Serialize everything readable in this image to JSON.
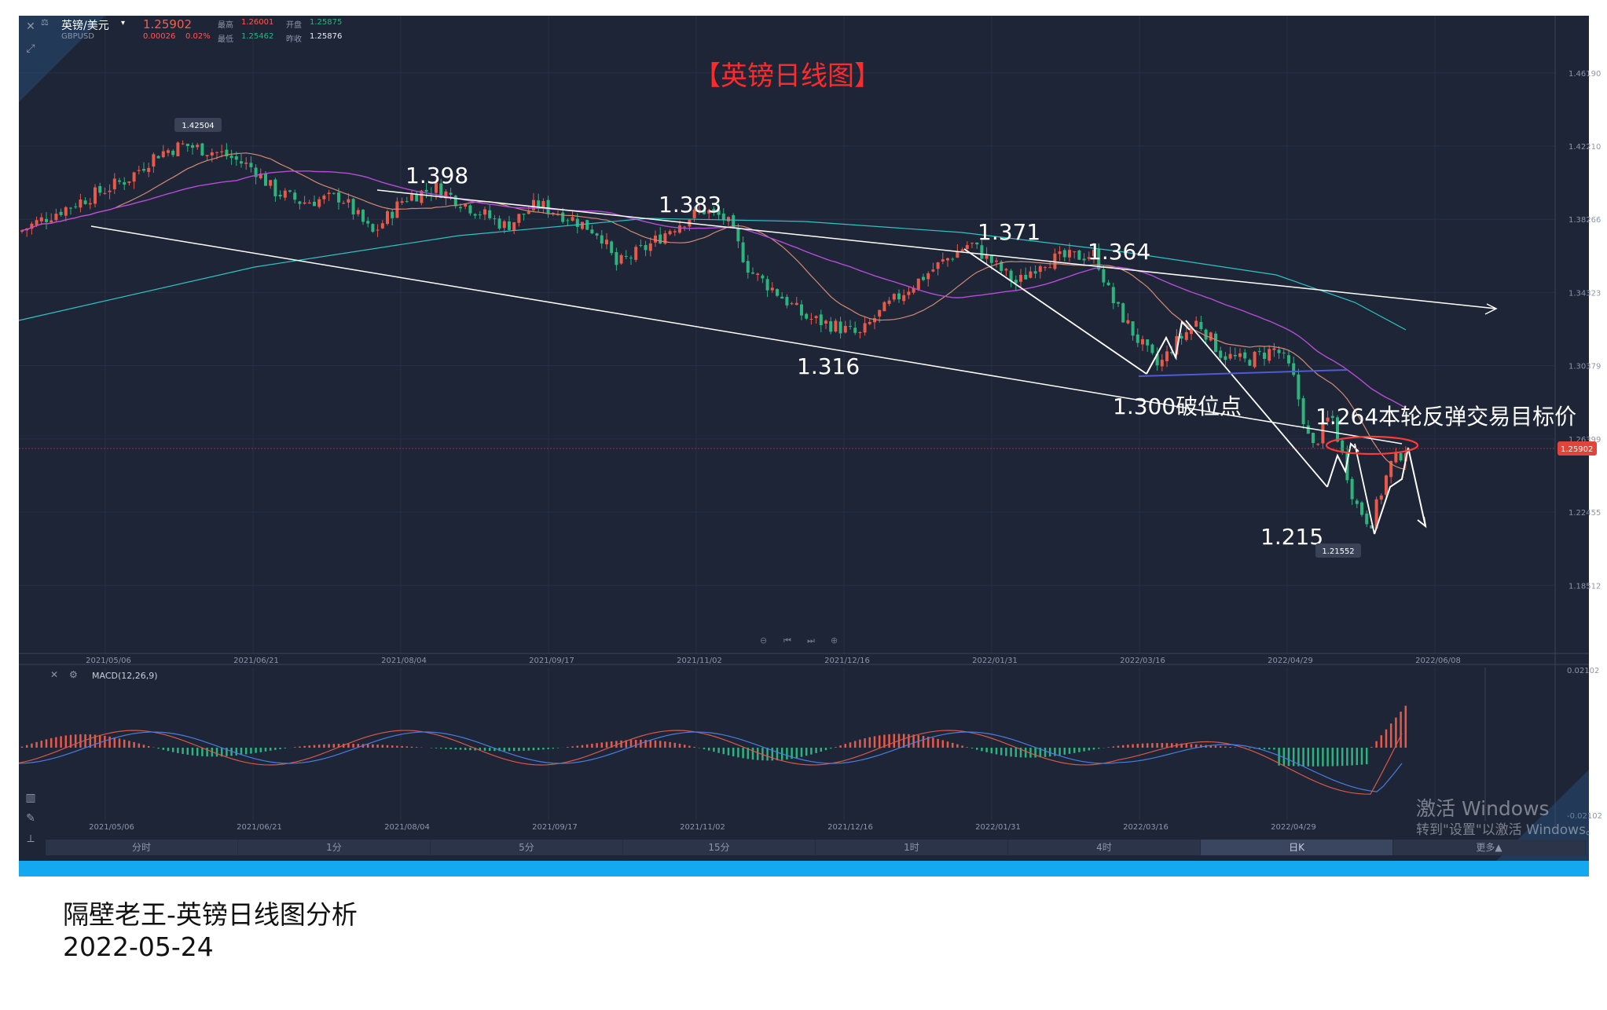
{
  "header": {
    "symbol": "英镑/美元",
    "symbol_code": "GBPUSD",
    "price": "1.25902",
    "change": "0.00026",
    "change_pct": "0.02%",
    "high_label": "最高",
    "high": "1.26001",
    "open_label": "开盘",
    "open": "1.25875",
    "low_label": "最低",
    "low": "1.25462",
    "prev_close_label": "昨收",
    "prev_close": "1.25876"
  },
  "chart_title": "【英镑日线图】",
  "price_axis": [
    "1.46190",
    "1.42210",
    "1.38266",
    "1.34323",
    "1.30379",
    "1.26399",
    "1.22455",
    "1.18512"
  ],
  "current_price_tag": "1.25902",
  "date_axis": [
    "2021/05/06",
    "2021/06/21",
    "2021/08/04",
    "2021/09/17",
    "2021/11/02",
    "2021/12/16",
    "2022/01/31",
    "2022/03/16",
    "2022/04/29",
    "2022/06/08"
  ],
  "macd_date_axis": [
    "2021/05/06",
    "2021/06/21",
    "2021/08/04",
    "2021/09/17",
    "2021/11/02",
    "2021/12/16",
    "2022/01/31",
    "2022/03/16",
    "2022/04/29"
  ],
  "macd": {
    "label": "MACD(12,26,9)",
    "top_value": "0.02102",
    "bottom_value": "-0.02102"
  },
  "annotations": {
    "hi_tag": "1.42504",
    "lo_tag": "1.21552",
    "a1398": "1.398",
    "a1383": "1.383",
    "a1371": "1.371",
    "a1364": "1.364",
    "a1316": "1.316",
    "a1300": "1.300破位点",
    "a1264": "1.264本轮反弹交易目标价",
    "a1215": "1.215"
  },
  "timeframes": [
    {
      "label": "分时",
      "active": false
    },
    {
      "label": "1分",
      "active": false
    },
    {
      "label": "5分",
      "active": false
    },
    {
      "label": "15分",
      "active": false
    },
    {
      "label": "1时",
      "active": false
    },
    {
      "label": "4时",
      "active": false
    },
    {
      "label": "日K",
      "active": true
    },
    {
      "label": "更多▲",
      "active": false
    }
  ],
  "watermark": {
    "line1": "激活 Windows",
    "line2": "转到\"设置\"以激活 Windows。"
  },
  "caption": {
    "line1": "隔壁老王-英镑日线图分析",
    "line2": "2022-05-24"
  },
  "colors": {
    "background": "#1e2536",
    "up": "#e8594a",
    "down": "#2db37d",
    "title": "#ff2b2b",
    "accent_blue": "#14a8f0"
  }
}
